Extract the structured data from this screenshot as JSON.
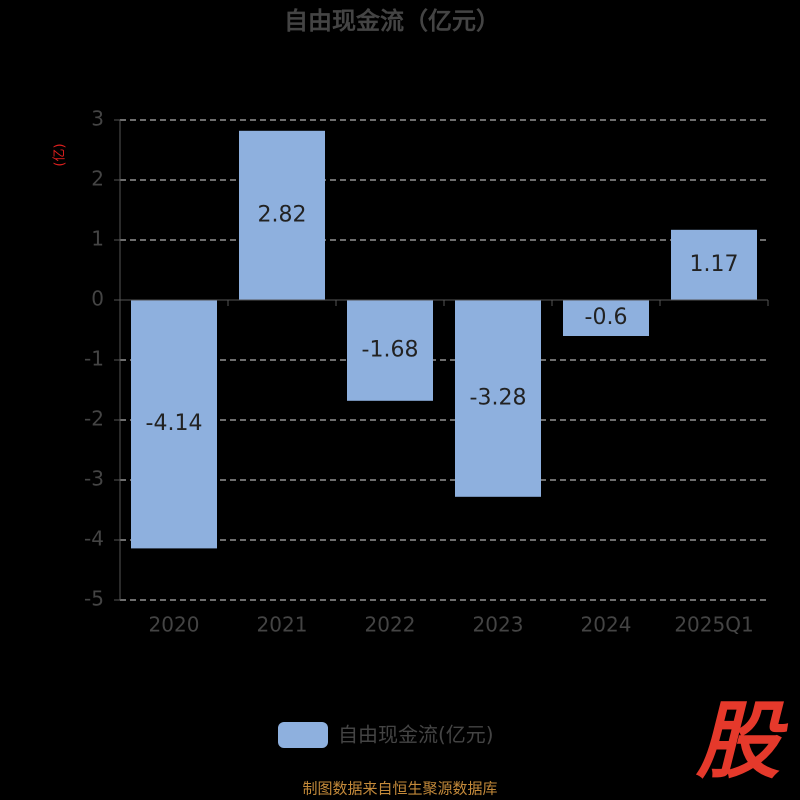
{
  "chart_data": {
    "type": "bar",
    "title": "自由现金流（亿元）",
    "y_label": "(亿)",
    "categories": [
      "2020",
      "2021",
      "2022",
      "2023",
      "2024",
      "2025Q1"
    ],
    "series": [
      {
        "name": "自由现金流(亿元)",
        "color": "#8eb0de",
        "values": [
          -4.14,
          2.82,
          -1.68,
          -3.28,
          -0.6,
          1.17
        ]
      }
    ],
    "ylim": [
      -5,
      3
    ],
    "yticks": [
      -5,
      -4,
      -3,
      -2,
      -1,
      0,
      1,
      2,
      3
    ],
    "grid": true,
    "legend": "bottom"
  },
  "footer": "制图数据来自恒生聚源数据库",
  "logo": "股"
}
